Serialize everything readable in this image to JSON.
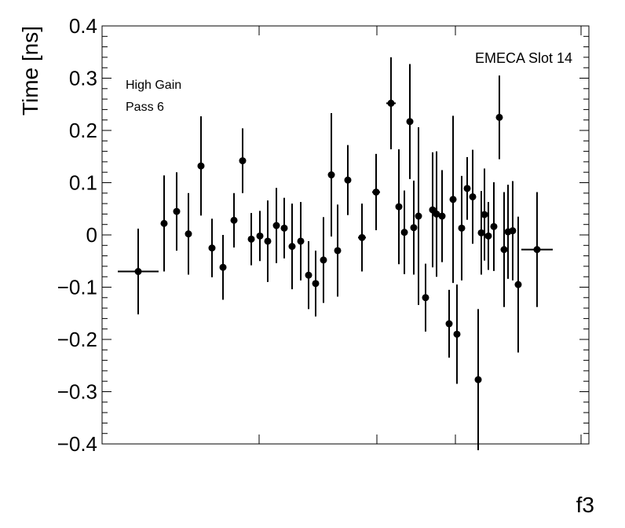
{
  "chart_data": {
    "type": "scatter",
    "title": "",
    "xlabel": "f3",
    "ylabel": "Time [ns]",
    "ylim": [
      -0.4,
      0.4
    ],
    "xlim": [
      0,
      1
    ],
    "grid": false,
    "yticks": [
      -0.4,
      -0.3,
      -0.2,
      -0.1,
      0,
      0.1,
      0.2,
      0.3,
      0.4
    ],
    "ytick_labels": [
      "−0.4",
      "−0.3",
      "−0.2",
      "−0.1",
      "0",
      "0.1",
      "0.2",
      "0.3",
      "0.4"
    ],
    "annotations": {
      "top_right": "EMECA Slot 14",
      "gain": "High Gain",
      "pass": "Pass 6"
    },
    "marker_color": "#000000",
    "points": [
      {
        "x": 0.0742,
        "y": -0.07,
        "xerr": 0.0419,
        "yerr": 0.082
      },
      {
        "x": 0.1274,
        "y": 0.022,
        "xerr": 0.0064,
        "yerr": 0.092
      },
      {
        "x": 0.1532,
        "y": 0.045,
        "xerr": 0.0064,
        "yerr": 0.075
      },
      {
        "x": 0.1774,
        "y": 0.002,
        "xerr": 0.0064,
        "yerr": 0.078
      },
      {
        "x": 0.2032,
        "y": 0.132,
        "xerr": 0.0064,
        "yerr": 0.095
      },
      {
        "x": 0.2258,
        "y": -0.025,
        "xerr": 0.0064,
        "yerr": 0.056
      },
      {
        "x": 0.2484,
        "y": -0.062,
        "xerr": 0.0064,
        "yerr": 0.062
      },
      {
        "x": 0.271,
        "y": 0.028,
        "xerr": 0.0064,
        "yerr": 0.052
      },
      {
        "x": 0.2887,
        "y": 0.142,
        "xerr": 0.0064,
        "yerr": 0.062
      },
      {
        "x": 0.3065,
        "y": -0.008,
        "xerr": 0.0048,
        "yerr": 0.05
      },
      {
        "x": 0.3242,
        "y": -0.002,
        "xerr": 0.0048,
        "yerr": 0.048
      },
      {
        "x": 0.3403,
        "y": -0.012,
        "xerr": 0.0048,
        "yerr": 0.078
      },
      {
        "x": 0.3581,
        "y": 0.018,
        "xerr": 0.0048,
        "yerr": 0.072
      },
      {
        "x": 0.3742,
        "y": 0.013,
        "xerr": 0.0048,
        "yerr": 0.058
      },
      {
        "x": 0.3903,
        "y": -0.022,
        "xerr": 0.0048,
        "yerr": 0.082
      },
      {
        "x": 0.4081,
        "y": -0.012,
        "xerr": 0.0048,
        "yerr": 0.075
      },
      {
        "x": 0.4242,
        "y": -0.077,
        "xerr": 0.0048,
        "yerr": 0.065
      },
      {
        "x": 0.4387,
        "y": -0.093,
        "xerr": 0.0048,
        "yerr": 0.063
      },
      {
        "x": 0.4548,
        "y": -0.048,
        "xerr": 0.0048,
        "yerr": 0.082
      },
      {
        "x": 0.471,
        "y": 0.115,
        "xerr": 0.0048,
        "yerr": 0.118
      },
      {
        "x": 0.4839,
        "y": -0.03,
        "xerr": 0.0048,
        "yerr": 0.088
      },
      {
        "x": 0.5048,
        "y": 0.105,
        "xerr": 0.0064,
        "yerr": 0.067
      },
      {
        "x": 0.5339,
        "y": -0.005,
        "xerr": 0.0081,
        "yerr": 0.065
      },
      {
        "x": 0.5629,
        "y": 0.082,
        "xerr": 0.0081,
        "yerr": 0.073
      },
      {
        "x": 0.5935,
        "y": 0.252,
        "xerr": 0.0097,
        "yerr": 0.088
      },
      {
        "x": 0.6097,
        "y": 0.054,
        "xerr": 0.0048,
        "yerr": 0.11
      },
      {
        "x": 0.621,
        "y": 0.005,
        "xerr": 0.0032,
        "yerr": 0.08
      },
      {
        "x": 0.6323,
        "y": 0.217,
        "xerr": 0.0032,
        "yerr": 0.11
      },
      {
        "x": 0.6403,
        "y": 0.014,
        "xerr": 0.0032,
        "yerr": 0.09
      },
      {
        "x": 0.65,
        "y": 0.036,
        "xerr": 0.0032,
        "yerr": 0.17
      },
      {
        "x": 0.6645,
        "y": -0.12,
        "xerr": 0.0032,
        "yerr": 0.065
      },
      {
        "x": 0.679,
        "y": 0.048,
        "xerr": 0.0032,
        "yerr": 0.11
      },
      {
        "x": 0.6871,
        "y": 0.04,
        "xerr": 0.0032,
        "yerr": 0.12
      },
      {
        "x": 0.6984,
        "y": 0.036,
        "xerr": 0.0032,
        "yerr": 0.088
      },
      {
        "x": 0.7129,
        "y": -0.17,
        "xerr": 0.0032,
        "yerr": 0.065
      },
      {
        "x": 0.721,
        "y": 0.068,
        "xerr": 0.0032,
        "yerr": 0.16
      },
      {
        "x": 0.729,
        "y": -0.19,
        "xerr": 0.0032,
        "yerr": 0.095
      },
      {
        "x": 0.7387,
        "y": 0.013,
        "xerr": 0.0032,
        "yerr": 0.1
      },
      {
        "x": 0.75,
        "y": 0.089,
        "xerr": 0.0032,
        "yerr": 0.06
      },
      {
        "x": 0.7613,
        "y": 0.073,
        "xerr": 0.0032,
        "yerr": 0.09
      },
      {
        "x": 0.7726,
        "y": -0.277,
        "xerr": 0.0032,
        "yerr": 0.135
      },
      {
        "x": 0.779,
        "y": 0.004,
        "xerr": 0.0032,
        "yerr": 0.08
      },
      {
        "x": 0.7855,
        "y": 0.039,
        "xerr": 0.0032,
        "yerr": 0.088
      },
      {
        "x": 0.7935,
        "y": -0.002,
        "xerr": 0.0032,
        "yerr": 0.065
      },
      {
        "x": 0.8048,
        "y": 0.016,
        "xerr": 0.0032,
        "yerr": 0.085
      },
      {
        "x": 0.8161,
        "y": 0.225,
        "xerr": 0.0032,
        "yerr": 0.08
      },
      {
        "x": 0.8258,
        "y": -0.028,
        "xerr": 0.0032,
        "yerr": 0.11
      },
      {
        "x": 0.8339,
        "y": 0.006,
        "xerr": 0.0032,
        "yerr": 0.09
      },
      {
        "x": 0.8435,
        "y": 0.008,
        "xerr": 0.0032,
        "yerr": 0.095
      },
      {
        "x": 0.8548,
        "y": -0.095,
        "xerr": 0.0032,
        "yerr": 0.13
      },
      {
        "x": 0.8935,
        "y": -0.028,
        "xerr": 0.0323,
        "yerr": 0.11
      }
    ]
  }
}
